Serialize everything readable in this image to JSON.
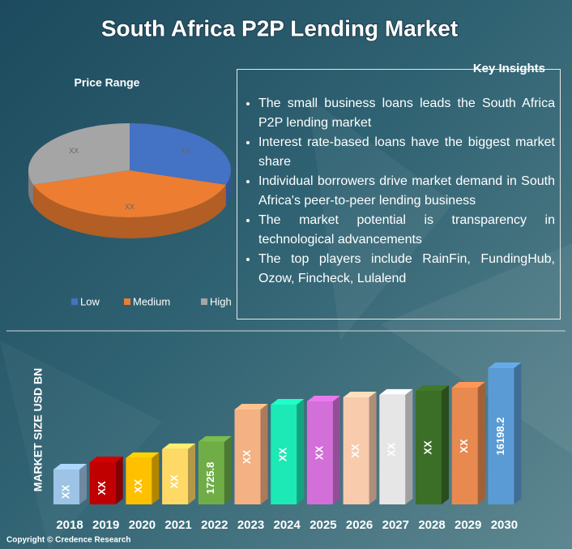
{
  "title": "South Africa P2P Lending Market",
  "copyright": "Copyright © Credence Research",
  "insights": {
    "title": "Key Insights",
    "items": [
      "The small business loans leads the South Africa P2P lending market",
      "Interest rate-based loans have the biggest market share",
      "Individual borrowers drive market demand in South Africa's peer-to-peer lending business",
      "The market potential is transparency in technological advancements",
      "The top players include RainFin, FundingHub, Ozow, Fincheck, Lulalend"
    ]
  },
  "chart_data": [
    {
      "type": "pie",
      "title": "Price Range",
      "categories": [
        "Low",
        "Medium",
        "High"
      ],
      "values": [
        30,
        40,
        30
      ],
      "value_labels": [
        "XX",
        "XX",
        "XX"
      ],
      "colors": [
        "#4472c4",
        "#ed7d31",
        "#a5a5a5"
      ]
    },
    {
      "type": "bar",
      "y_label": "MARKET SIZE USD BN",
      "categories": [
        "2018",
        "2019",
        "2020",
        "2021",
        "2022",
        "2023",
        "2024",
        "2025",
        "2026",
        "2027",
        "2028",
        "2029",
        "2030"
      ],
      "values": [
        324,
        559,
        729,
        1210,
        1725.8,
        5734,
        6620,
        7257,
        8106,
        8662,
        9601,
        10400,
        16198.2
      ],
      "value_labels": [
        "XX",
        "XX",
        "XX",
        "XX",
        "1725.8",
        "XX",
        "XX",
        "XX",
        "XX",
        "XX",
        "XX",
        "XX",
        "16198.2"
      ],
      "colors": [
        "#9dc3e6",
        "#c00000",
        "#ffc000",
        "#ffd966",
        "#70ad47",
        "#f4b183",
        "#1de9b6",
        "#d36fd8",
        "#f8cbad",
        "#e7e6e6",
        "#3b6e27",
        "#e8894f",
        "#5b9bd5"
      ]
    }
  ]
}
